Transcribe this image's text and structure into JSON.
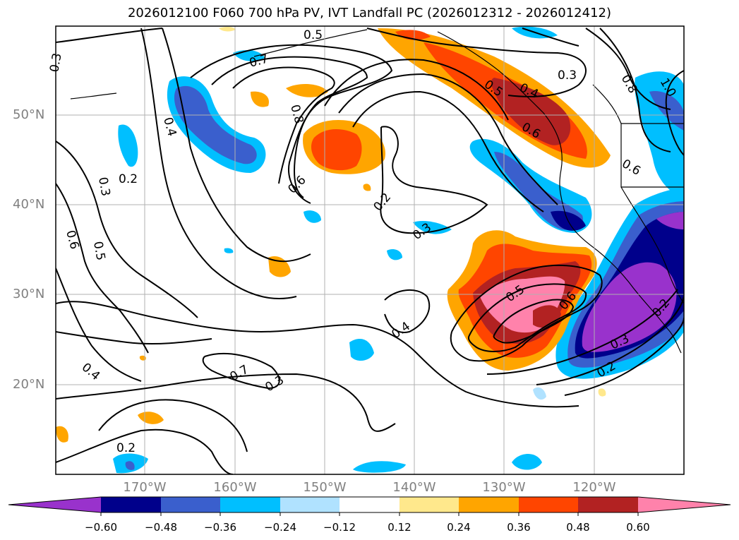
{
  "title": "2026012100 F060 700 hPa PV, IVT Landfall PC (2026012312 - 2026012412)",
  "lat_labels": [
    "50°N",
    "40°N",
    "30°N",
    "20°N"
  ],
  "lon_labels": [
    "170°W",
    "160°W",
    "150°W",
    "140°W",
    "130°W",
    "120°W"
  ],
  "colorbar": {
    "tick_labels": [
      "−0.60",
      "−0.48",
      "−0.36",
      "−0.24",
      "−0.12",
      "0.12",
      "0.24",
      "0.36",
      "0.48",
      "0.60"
    ],
    "colors": [
      "#9932cc",
      "#00008b",
      "#3a5fcd",
      "#00bfff",
      "#b0e2ff",
      "#ffffff",
      "#ffe88c",
      "#ffa500",
      "#ff4500",
      "#b22222",
      "#ff82ab"
    ]
  },
  "contour_labels": [
    "0.5",
    "0.7",
    "0.3",
    "0.4",
    "0.2",
    "0.3",
    "0.6",
    "0.5",
    "0.8",
    "0.6",
    "0.2",
    "0.3",
    "0.5",
    "0.4",
    "0.6",
    "0.3",
    "0.8",
    "1.0",
    "0.6",
    "0.5",
    "0.6",
    "0.4",
    "0.3",
    "0.2",
    "0.4",
    "0.2",
    "0.2",
    "0.7",
    "0.3"
  ]
}
